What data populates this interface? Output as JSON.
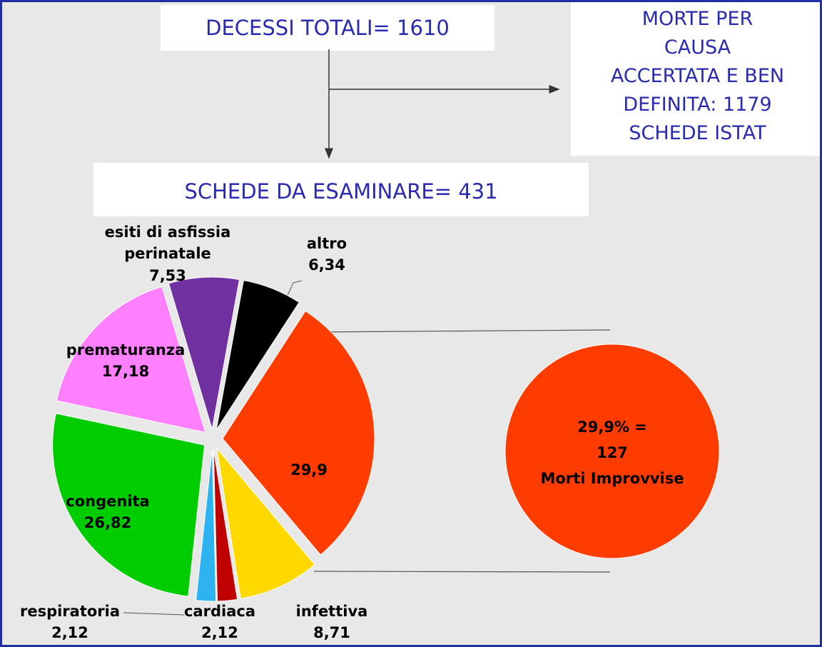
{
  "chart_data": {
    "type": "pie",
    "categories": [
      null,
      "infettiva",
      "cardiaca",
      "respiratoria",
      "congenita",
      "prematuranza",
      "esiti di asfissia perinatale",
      "altro"
    ],
    "values": [
      29.9,
      8.71,
      2.12,
      2.12,
      26.82,
      17.18,
      7.53,
      6.34
    ],
    "value_labels": [
      "29,9",
      "8,71",
      "2,12",
      "2,12",
      "26,82",
      "17,18",
      "7,53",
      "6,34"
    ],
    "colors": [
      "#ff3c00",
      "#ffd800",
      "#c00000",
      "#2db4f0",
      "#00cc00",
      "#ff80ff",
      "#7030a0",
      "#000000"
    ],
    "callout": {
      "lines": [
        "29,9% =",
        "127",
        "Morti Improvvise"
      ],
      "color": "#ff3c00"
    }
  },
  "flow": {
    "total": "DECESSI TOTALI= 1610",
    "defined": [
      "MORTE PER",
      "CAUSA",
      "ACCERTATA E BEN",
      "DEFINITA: 1179",
      "SCHEDE ISTAT"
    ],
    "to_examine": "SCHEDE DA ESAMINARE= 431"
  }
}
